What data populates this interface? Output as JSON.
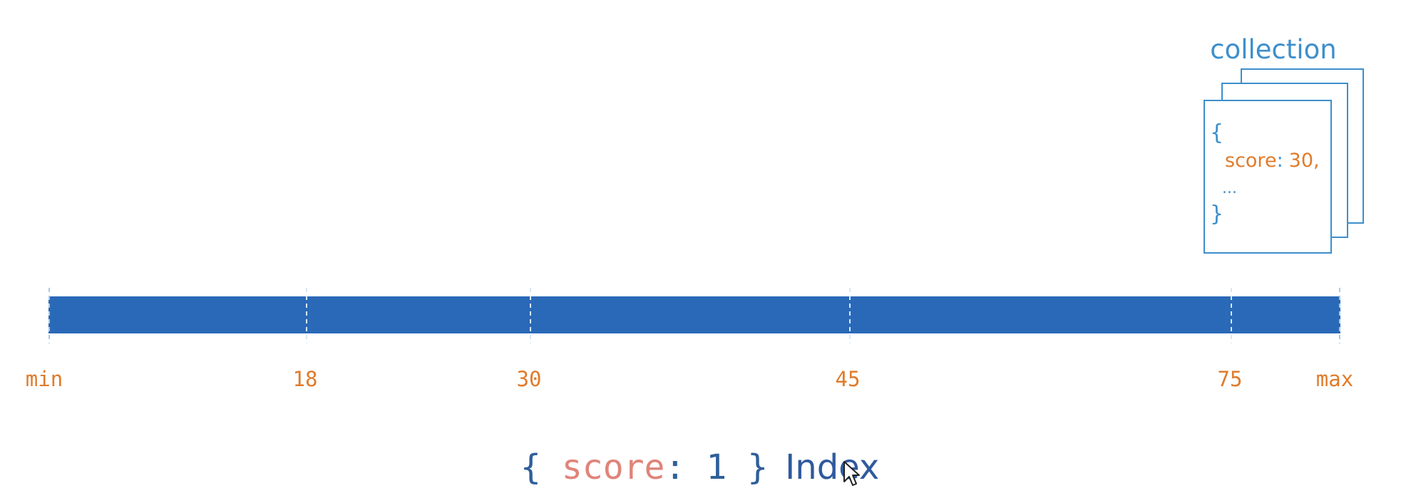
{
  "collection": {
    "title": "collection",
    "doc_open_brace": "{",
    "doc_field_key": "score",
    "doc_field_sep": ":",
    "doc_field_value": "30,",
    "doc_ellipsis": "...",
    "doc_close_brace": "}"
  },
  "index_axis": {
    "ticks": [
      "min",
      "18",
      "30",
      "45",
      "75",
      "max"
    ]
  },
  "index_label": {
    "open_brace": "{",
    "key": "score",
    "sep": ":",
    "value": "1",
    "close_brace": "}",
    "name": "Index"
  },
  "colors": {
    "bar": "#2a69b8",
    "tick_label": "#e07b2a",
    "collection_blue": "#3d8fcc",
    "dashed_line": "#a9c9ea",
    "index_key": "#e0847a",
    "index_punct": "#2f5f9a",
    "index_name": "#2f5a9e",
    "doc_orange": "#e07b2a"
  },
  "icons": {
    "cursor": "mouse-pointer-icon"
  }
}
